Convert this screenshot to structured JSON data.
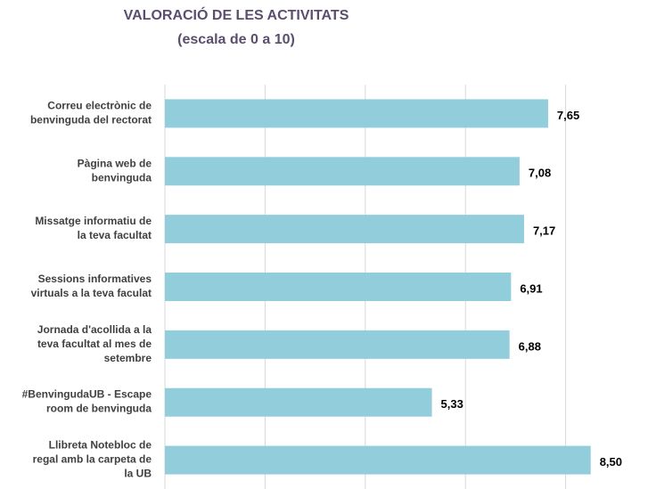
{
  "chart_data": {
    "type": "barh",
    "title": "VALORACIÓ DE LES ACTIVITATS",
    "subtitle": "(escala de 0 a 10)",
    "categories": [
      "Correu electrònic de\nbenvinguda del rectorat",
      "Pàgina web de\nbenvinguda",
      "Missatge informatiu de\nla teva facultat",
      "Sessions informatives\nvirtuals a la teva faculat",
      "Jornada d'acollida a la\nteva facultat al mes de\nsetembre",
      "#BenvingudaUB - Escape\nroom de benvinguda",
      "Llibreta Notebloc de\nregal amb la carpeta de\nla UB"
    ],
    "values": [
      7.65,
      7.08,
      7.17,
      6.91,
      6.88,
      5.33,
      8.5
    ],
    "value_labels": [
      "7,65",
      "7,08",
      "7,17",
      "6,91",
      "6,88",
      "5,33",
      "8,50"
    ],
    "color": "#92cddc",
    "xlim": [
      0,
      9
    ],
    "xticks": [
      0,
      2,
      4,
      6,
      8
    ],
    "grid": true
  }
}
